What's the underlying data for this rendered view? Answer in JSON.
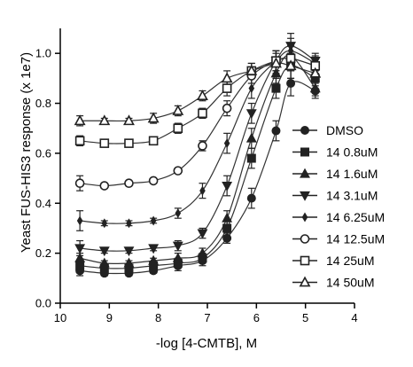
{
  "chart_data": {
    "type": "scatter",
    "xlabel": "-log [4-CMTB], M",
    "ylabel": "Yeast FUS-HIS3 response (x 1e7)",
    "xlim": [
      10,
      4
    ],
    "ylim": [
      0,
      1.1
    ],
    "x_ticks": [
      "10",
      "9",
      "8",
      "7",
      "6",
      "5",
      "4"
    ],
    "y_ticks": [
      "0.0",
      "0.2",
      "0.4",
      "0.6",
      "0.8",
      "1.0"
    ],
    "grid": false,
    "legend_position": "right",
    "x": [
      9.6,
      9.1,
      8.6,
      8.1,
      7.6,
      7.1,
      6.6,
      6.1,
      5.6,
      5.3,
      4.8
    ],
    "series": [
      {
        "name": "DMSO",
        "marker": "circle-filled",
        "values": [
          0.13,
          0.12,
          0.12,
          0.13,
          0.15,
          0.17,
          0.26,
          0.42,
          0.69,
          0.88,
          0.85
        ],
        "error": [
          0.02,
          0.01,
          0.01,
          0.01,
          0.02,
          0.02,
          0.02,
          0.04,
          0.04,
          0.05,
          0.03
        ]
      },
      {
        "name": "14 0.8uM",
        "marker": "square-filled",
        "values": [
          0.15,
          0.14,
          0.14,
          0.15,
          0.16,
          0.18,
          0.3,
          0.58,
          0.86,
          0.95,
          0.9
        ],
        "error": [
          0.02,
          0.01,
          0.01,
          0.01,
          0.02,
          0.02,
          0.03,
          0.04,
          0.04,
          0.05,
          0.03
        ]
      },
      {
        "name": "14 1.6uM",
        "marker": "triangle-up-filled",
        "values": [
          0.18,
          0.16,
          0.16,
          0.17,
          0.18,
          0.2,
          0.34,
          0.66,
          0.92,
          0.99,
          0.86
        ],
        "error": [
          0.02,
          0.01,
          0.01,
          0.01,
          0.02,
          0.02,
          0.03,
          0.04,
          0.04,
          0.05,
          0.03
        ]
      },
      {
        "name": "14 3.1uM",
        "marker": "triangle-down-filled",
        "values": [
          0.22,
          0.21,
          0.21,
          0.22,
          0.23,
          0.28,
          0.47,
          0.76,
          0.97,
          1.03,
          0.97
        ],
        "error": [
          0.03,
          0.01,
          0.01,
          0.01,
          0.02,
          0.02,
          0.04,
          0.04,
          0.04,
          0.05,
          0.03
        ]
      },
      {
        "name": "14 6.25uM",
        "marker": "diamond-filled",
        "values": [
          0.33,
          0.32,
          0.32,
          0.33,
          0.36,
          0.45,
          0.64,
          0.86,
          0.97,
          1.01,
          0.96
        ],
        "error": [
          0.04,
          0.01,
          0.01,
          0.01,
          0.02,
          0.03,
          0.04,
          0.04,
          0.04,
          0.05,
          0.03
        ]
      },
      {
        "name": "14 12.5uM",
        "marker": "circle-open",
        "values": [
          0.48,
          0.47,
          0.48,
          0.49,
          0.53,
          0.63,
          0.78,
          0.91,
          0.97,
          0.98,
          0.95
        ],
        "error": [
          0.03,
          0.01,
          0.01,
          0.01,
          0.01,
          0.02,
          0.03,
          0.03,
          0.04,
          0.05,
          0.03
        ]
      },
      {
        "name": "14 25uM",
        "marker": "square-open",
        "values": [
          0.65,
          0.64,
          0.64,
          0.65,
          0.7,
          0.76,
          0.86,
          0.93,
          0.97,
          0.98,
          0.95
        ],
        "error": [
          0.02,
          0.01,
          0.01,
          0.01,
          0.02,
          0.02,
          0.03,
          0.03,
          0.04,
          0.05,
          0.03
        ]
      },
      {
        "name": "14 50uM",
        "marker": "triangle-up-open",
        "values": [
          0.73,
          0.73,
          0.73,
          0.74,
          0.77,
          0.83,
          0.9,
          0.93,
          0.96,
          0.95,
          0.92
        ],
        "error": [
          0.02,
          0.01,
          0.01,
          0.02,
          0.02,
          0.02,
          0.03,
          0.03,
          0.04,
          0.05,
          0.03
        ]
      }
    ]
  }
}
